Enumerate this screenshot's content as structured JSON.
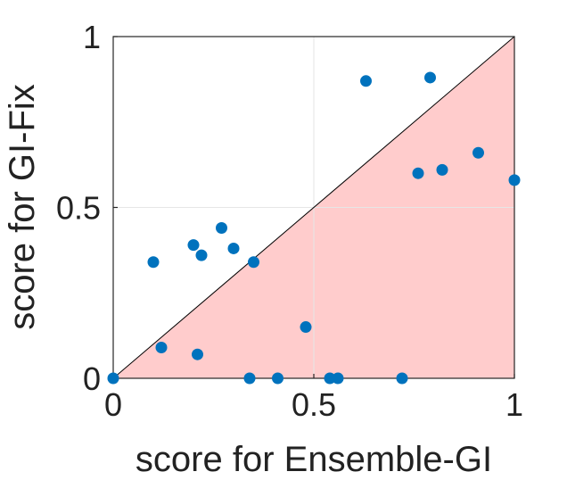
{
  "chart_data": {
    "type": "scatter",
    "xlabel": "score for Ensemble-GI",
    "ylabel": "score for GI-Fix",
    "xlim": [
      0,
      1
    ],
    "ylim": [
      0,
      1
    ],
    "xticks": [
      0,
      0.5,
      1
    ],
    "yticks": [
      0,
      0.5,
      1
    ],
    "xtick_labels": [
      "0",
      "0.5",
      "1"
    ],
    "ytick_labels": [
      "0",
      "0.5",
      "1"
    ],
    "grid": true,
    "diagonal_line": true,
    "shaded_region": "below diagonal y = x",
    "colors": {
      "points": "#0072BD",
      "shade": "#FFCCCC",
      "diagonal": "#000000",
      "grid": "#E6E6E6",
      "axis": "#262626"
    },
    "points": [
      {
        "x": 0.0,
        "y": 0.0
      },
      {
        "x": 0.1,
        "y": 0.34
      },
      {
        "x": 0.12,
        "y": 0.09
      },
      {
        "x": 0.2,
        "y": 0.39
      },
      {
        "x": 0.21,
        "y": 0.07
      },
      {
        "x": 0.22,
        "y": 0.36
      },
      {
        "x": 0.27,
        "y": 0.44
      },
      {
        "x": 0.3,
        "y": 0.38
      },
      {
        "x": 0.34,
        "y": 0.0
      },
      {
        "x": 0.35,
        "y": 0.34
      },
      {
        "x": 0.41,
        "y": 0.0
      },
      {
        "x": 0.48,
        "y": 0.15
      },
      {
        "x": 0.54,
        "y": 0.0
      },
      {
        "x": 0.56,
        "y": 0.0
      },
      {
        "x": 0.63,
        "y": 0.87
      },
      {
        "x": 0.72,
        "y": 0.0
      },
      {
        "x": 0.76,
        "y": 0.6
      },
      {
        "x": 0.79,
        "y": 0.88
      },
      {
        "x": 0.82,
        "y": 0.61
      },
      {
        "x": 0.91,
        "y": 0.66
      },
      {
        "x": 1.0,
        "y": 0.58
      }
    ]
  }
}
